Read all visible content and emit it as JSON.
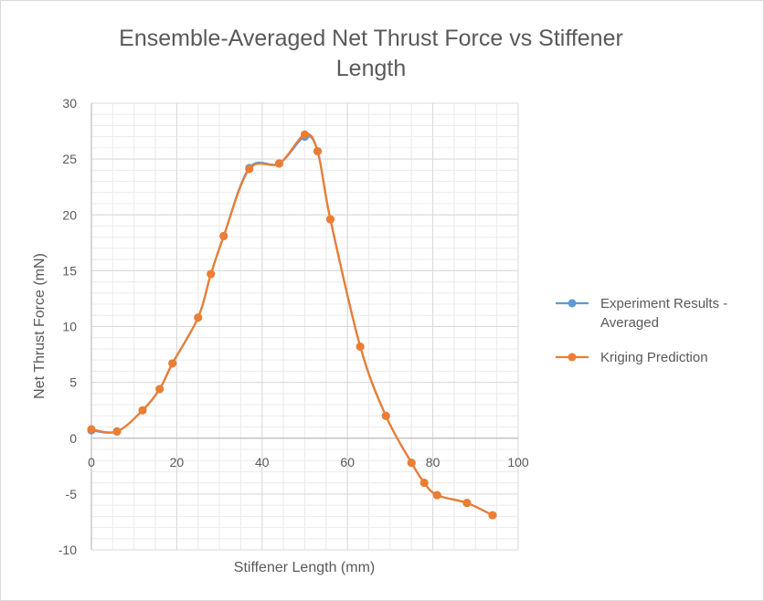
{
  "chart_data": {
    "type": "line",
    "title": "Ensemble-Averaged  Net Thrust Force vs Stiffener\nLength",
    "xlabel": "Stiffener Length (mm)",
    "ylabel": "Net Thrust Force (mN)",
    "xlim": [
      0,
      100
    ],
    "ylim": [
      -10,
      30
    ],
    "x_ticks": [
      "0",
      "20",
      "40",
      "60",
      "80",
      "100"
    ],
    "y_ticks": [
      "30",
      "25",
      "20",
      "15",
      "10",
      "5",
      "0",
      "-5",
      "-10"
    ],
    "grid": true,
    "legend_position": "right",
    "colors": {
      "experiment": "#5b9bd5",
      "kriging": "#ed7d31",
      "grid": "#d9d9d9",
      "text": "#595959"
    },
    "series": [
      {
        "name_lines": [
          "Experiment Results -",
          "Averaged"
        ],
        "color": "#5b9bd5",
        "x": [
          0,
          6,
          12,
          16,
          19,
          25,
          28,
          31,
          37,
          44,
          50,
          53,
          56,
          63,
          69,
          75,
          78,
          81,
          88,
          94
        ],
        "y": [
          0.7,
          0.6,
          2.5,
          4.4,
          6.7,
          10.8,
          14.7,
          18.1,
          24.2,
          24.6,
          27.0,
          25.7,
          19.6,
          8.2,
          2.0,
          -2.2,
          -4.0,
          -5.1,
          -5.8,
          -6.9
        ]
      },
      {
        "name_lines": [
          "Kriging Prediction"
        ],
        "color": "#ed7d31",
        "x": [
          0,
          6,
          12,
          16,
          19,
          25,
          28,
          31,
          37,
          44,
          50,
          53,
          56,
          63,
          69,
          75,
          78,
          81,
          88,
          94
        ],
        "y": [
          0.8,
          0.6,
          2.5,
          4.4,
          6.7,
          10.8,
          14.7,
          18.1,
          24.1,
          24.6,
          27.2,
          25.7,
          19.6,
          8.2,
          2.0,
          -2.2,
          -4.0,
          -5.1,
          -5.8,
          -6.9
        ]
      }
    ]
  }
}
